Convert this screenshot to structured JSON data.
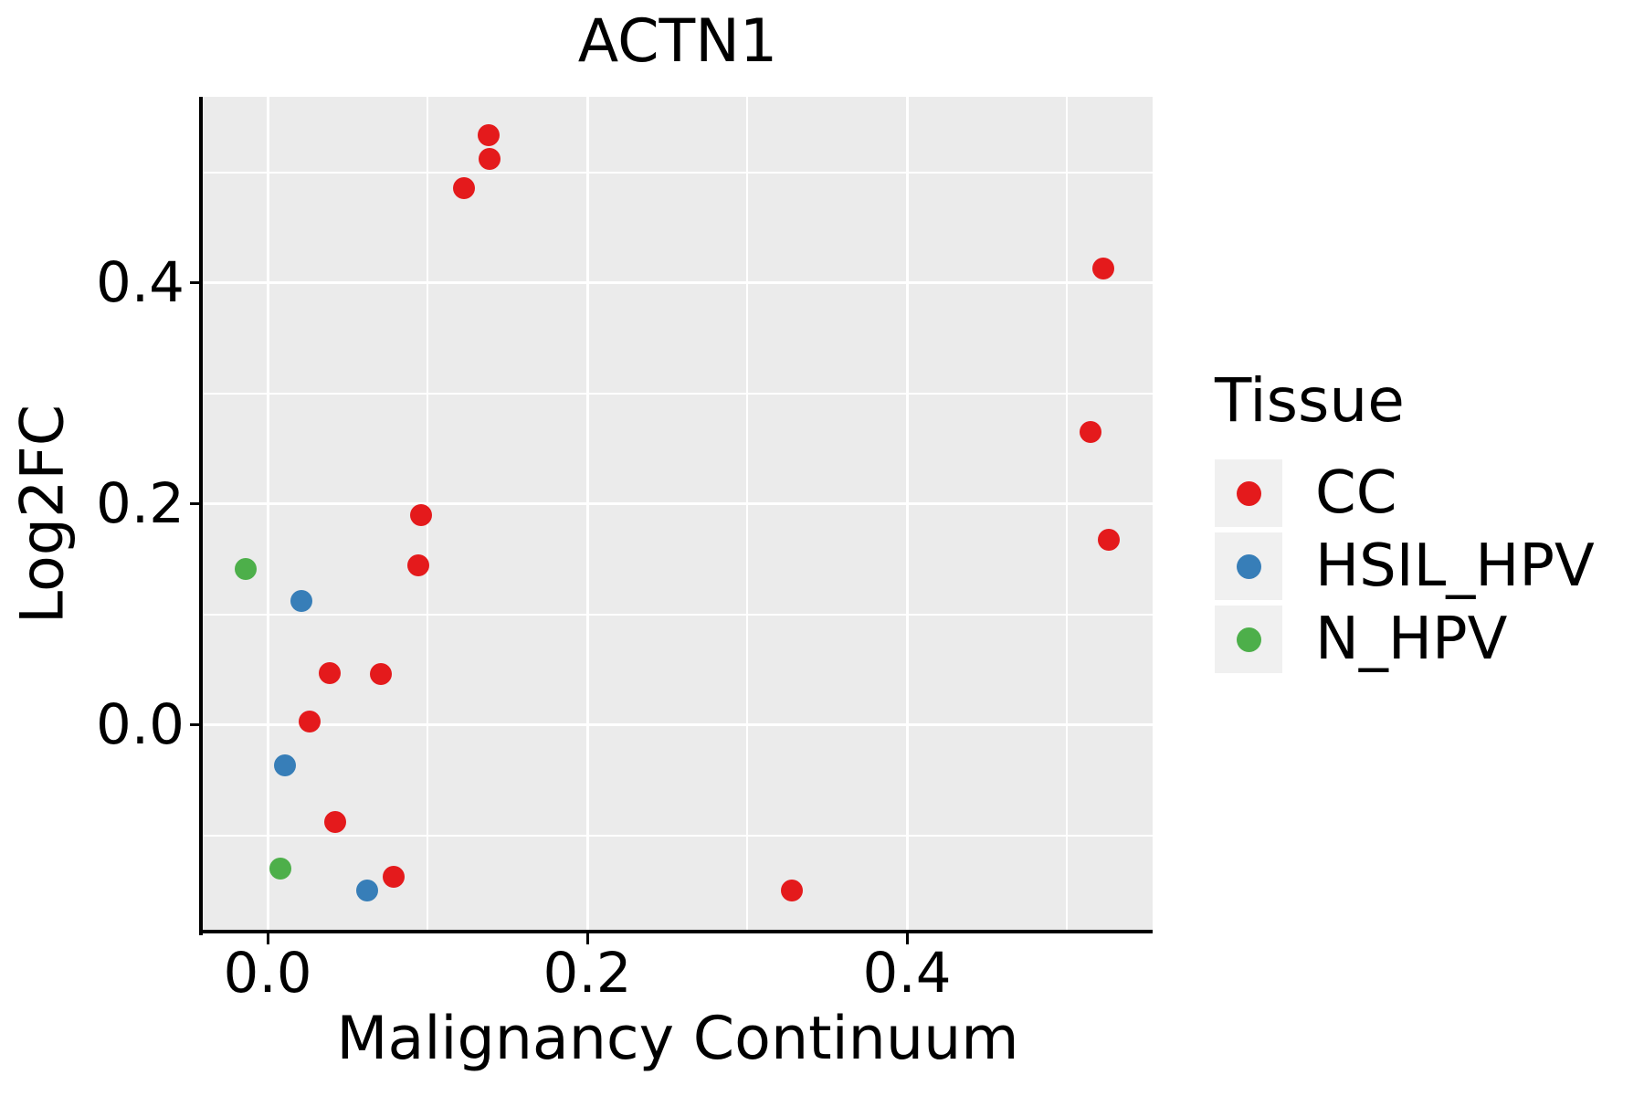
{
  "chart_data": {
    "type": "scatter",
    "title": "ACTN1",
    "xlabel": "Malignancy Continuum",
    "ylabel": "Log2FC",
    "xlim": [
      -0.0406,
      0.5537
    ],
    "ylim": [
      -0.1868,
      0.5686
    ],
    "grid": true,
    "x_ticks": {
      "values": [
        0.0,
        0.2,
        0.4
      ],
      "labels": [
        "0.0",
        "0.2",
        "0.4"
      ],
      "minor": [
        0.1,
        0.3,
        0.5
      ]
    },
    "y_ticks": {
      "values": [
        0.0,
        0.2,
        0.4
      ],
      "labels": [
        "0.0",
        "0.2",
        "0.4"
      ],
      "minor": [
        -0.1,
        0.1,
        0.3,
        0.5
      ]
    },
    "legend": {
      "title": "Tissue",
      "position": "right"
    },
    "colors": {
      "panel_bg": "#ebebeb",
      "grid": "#ffffff",
      "axis": "#000000",
      "text": "#000000",
      "legend_key_bg": "#f0f0f0"
    },
    "series": [
      {
        "name": "CC",
        "color": "#e41a1c",
        "points": [
          [
            0.138,
            0.534
          ],
          [
            0.139,
            0.512
          ],
          [
            0.123,
            0.486
          ],
          [
            0.523,
            0.413
          ],
          [
            0.515,
            0.265
          ],
          [
            0.526,
            0.168
          ],
          [
            0.096,
            0.19
          ],
          [
            0.094,
            0.145
          ],
          [
            0.039,
            0.047
          ],
          [
            0.071,
            0.046
          ],
          [
            0.026,
            0.003
          ],
          [
            0.042,
            -0.088
          ],
          [
            0.079,
            -0.137
          ],
          [
            0.328,
            -0.15
          ]
        ]
      },
      {
        "name": "HSIL_HPV",
        "color": "#377eb8",
        "points": [
          [
            0.021,
            0.112
          ],
          [
            0.011,
            -0.036
          ],
          [
            0.062,
            -0.15
          ]
        ]
      },
      {
        "name": "N_HPV",
        "color": "#4daf4a",
        "points": [
          [
            -0.014,
            0.141
          ],
          [
            0.008,
            -0.13
          ]
        ]
      }
    ]
  }
}
